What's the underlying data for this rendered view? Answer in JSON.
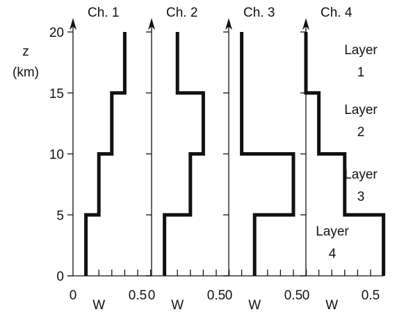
{
  "chart_data": {
    "type": "line",
    "shared_y": {
      "label_lines": [
        "z",
        "(km)"
      ],
      "ticks": [
        0,
        5,
        10,
        15,
        20
      ],
      "ylim": [
        0,
        20
      ]
    },
    "x_axis": {
      "label": "W",
      "tick_labels": [
        "0",
        "0.5"
      ],
      "minor_tick_step": 0.1,
      "xlim": [
        0,
        0.6
      ]
    },
    "panels": [
      {
        "title": "Ch. 1",
        "layer_values": [
          0.1,
          0.2,
          0.3,
          0.4
        ]
      },
      {
        "title": "Ch. 2",
        "layer_values": [
          0.1,
          0.3,
          0.4,
          0.2
        ]
      },
      {
        "title": "Ch. 3",
        "layer_values": [
          0.2,
          0.5,
          0.1,
          0.1
        ]
      },
      {
        "title": "Ch. 4",
        "layer_values": [
          0.6,
          0.3,
          0.1,
          0.0
        ]
      }
    ],
    "layer_boundaries_km": [
      0,
      5,
      10,
      15,
      20
    ],
    "layers": [
      {
        "lines": [
          "Layer",
          "1"
        ]
      },
      {
        "lines": [
          "Layer",
          "2"
        ]
      },
      {
        "lines": [
          "Layer",
          "3"
        ]
      },
      {
        "lines": [
          "Layer",
          "4"
        ]
      }
    ]
  }
}
